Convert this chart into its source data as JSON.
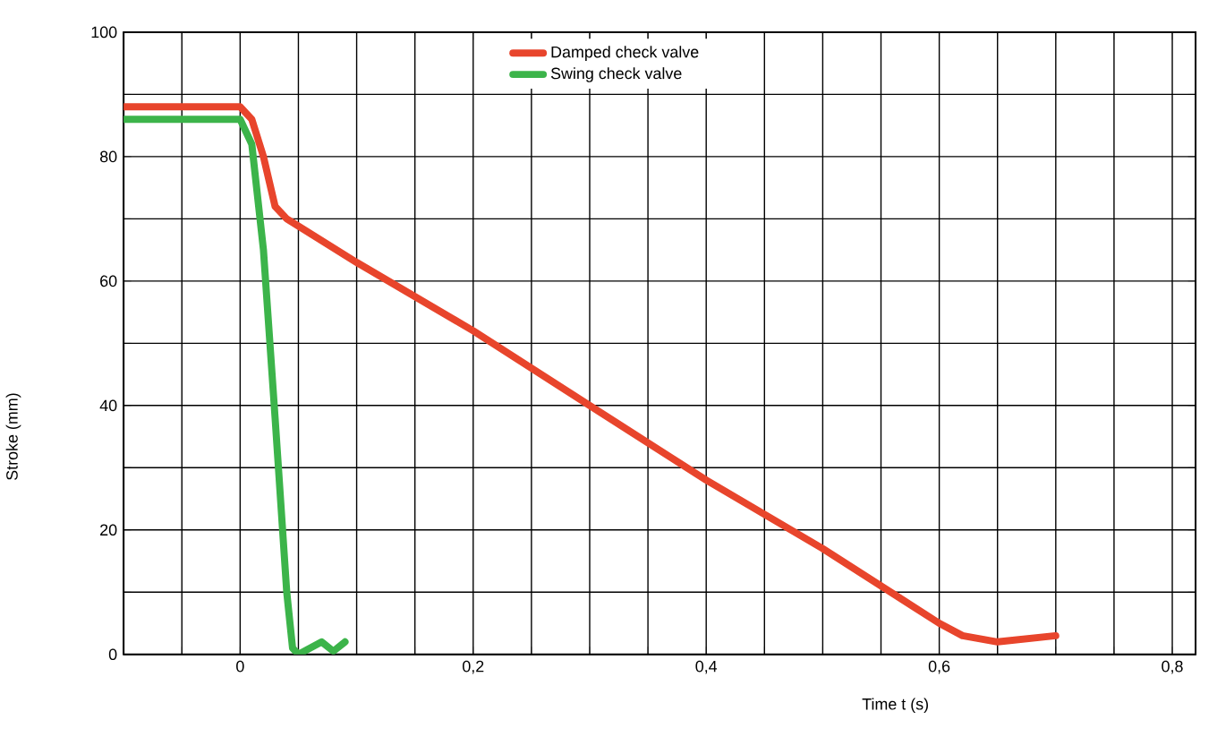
{
  "chart_data": {
    "type": "line",
    "xlabel": "Time t (s)",
    "ylabel": "Stroke (mm)",
    "xlim": [
      -0.1,
      0.82
    ],
    "ylim": [
      0,
      100
    ],
    "xticks": [
      {
        "value": -0.1,
        "label": null
      },
      {
        "value": -0.05,
        "label": null
      },
      {
        "value": 0,
        "label": "0"
      },
      {
        "value": 0.05,
        "label": null
      },
      {
        "value": 0.1,
        "label": null
      },
      {
        "value": 0.15,
        "label": null
      },
      {
        "value": 0.2,
        "label": "0,2"
      },
      {
        "value": 0.25,
        "label": null
      },
      {
        "value": 0.3,
        "label": null
      },
      {
        "value": 0.35,
        "label": null
      },
      {
        "value": 0.4,
        "label": "0,4"
      },
      {
        "value": 0.45,
        "label": null
      },
      {
        "value": 0.5,
        "label": null
      },
      {
        "value": 0.55,
        "label": null
      },
      {
        "value": 0.6,
        "label": "0,6"
      },
      {
        "value": 0.65,
        "label": null
      },
      {
        "value": 0.7,
        "label": null
      },
      {
        "value": 0.75,
        "label": null
      },
      {
        "value": 0.8,
        "label": "0,8"
      }
    ],
    "yticks": [
      0,
      {
        "value": 10,
        "label": null
      },
      20,
      {
        "value": 30,
        "label": null
      },
      40,
      {
        "value": 50,
        "label": null
      },
      60,
      {
        "value": 70,
        "label": null
      },
      80,
      {
        "value": 90,
        "label": null
      },
      100
    ],
    "grid": true,
    "legend": "top",
    "line_style": "solid",
    "marker": "none",
    "series": [
      {
        "name": "Damped check valve",
        "color": "#e8452c",
        "x": [
          -0.1,
          0,
          0.01,
          0.02,
          0.03,
          0.04,
          0.1,
          0.2,
          0.3,
          0.4,
          0.5,
          0.6,
          0.62,
          0.65,
          0.7
        ],
        "values": [
          88,
          88,
          86,
          80,
          72,
          70,
          63,
          52,
          40,
          28,
          17,
          5,
          3,
          2,
          3
        ]
      },
      {
        "name": "Swing check valve",
        "color": "#3cb44a",
        "x": [
          -0.1,
          0,
          0.01,
          0.02,
          0.03,
          0.04,
          0.045,
          0.05,
          0.06,
          0.07,
          0.08,
          0.09
        ],
        "values": [
          86,
          86,
          82,
          65,
          38,
          10,
          1,
          0,
          1,
          2,
          0.5,
          2
        ]
      }
    ]
  }
}
